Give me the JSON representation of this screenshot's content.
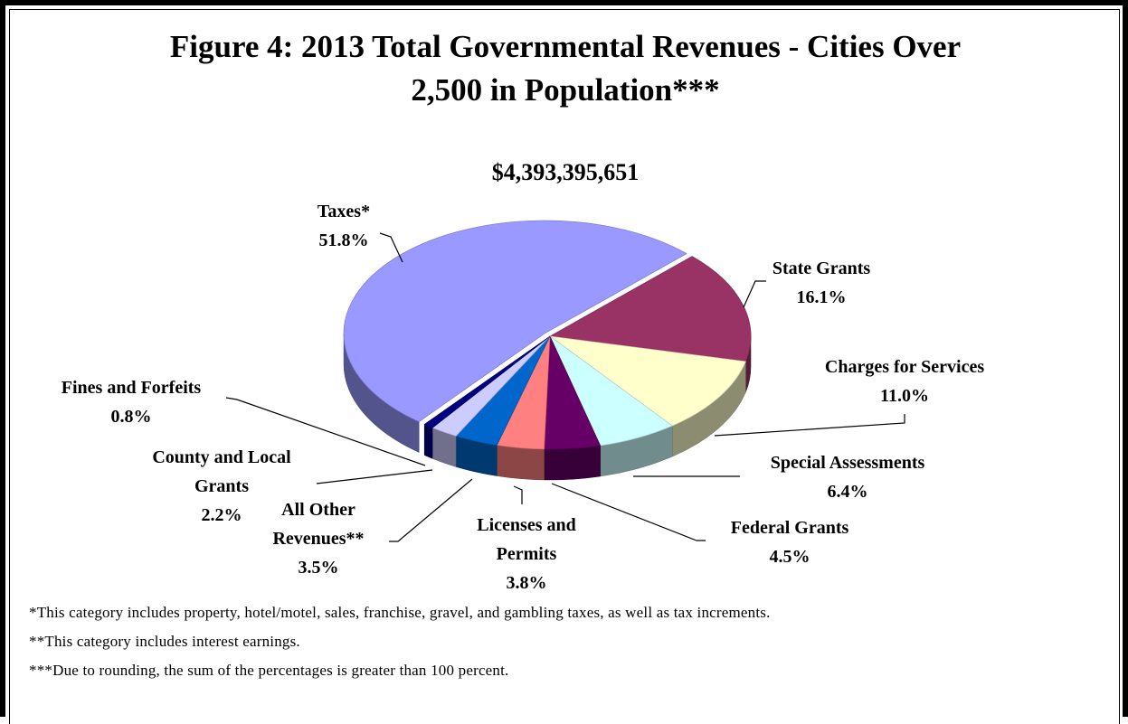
{
  "chart_data": {
    "type": "pie",
    "title": "Figure 4:  2013 Total Governmental Revenues - Cities Over 2,500 in Population***",
    "subtitle": "$4,393,395,651",
    "categories": [
      "State Grants",
      "Charges for Services",
      "Special Assessments",
      "Federal Grants",
      "Licenses and Permits",
      "All Other Revenues**",
      "County and Local Grants",
      "Fines and Forfeits",
      "Taxes*"
    ],
    "values": [
      16.1,
      11.0,
      6.4,
      4.5,
      3.8,
      3.5,
      2.2,
      0.8,
      51.8
    ],
    "value_labels": [
      "16.1%",
      "11.0%",
      "6.4%",
      "4.5%",
      "3.8%",
      "3.5%",
      "2.2%",
      "0.8%",
      "51.8%"
    ],
    "colors": [
      "#993366",
      "#FFFFCC",
      "#CCFFFF",
      "#660066",
      "#FF8080",
      "#0066CC",
      "#CCCCFF",
      "#000080",
      "#9999FF"
    ],
    "notes": [
      "*This category includes property, hotel/motel, sales, franchise, gravel, and gambling taxes, as well as tax increments.",
      "**This category includes interest earnings.",
      "***Due to rounding, the sum of the percentages is greater than 100 percent."
    ]
  }
}
